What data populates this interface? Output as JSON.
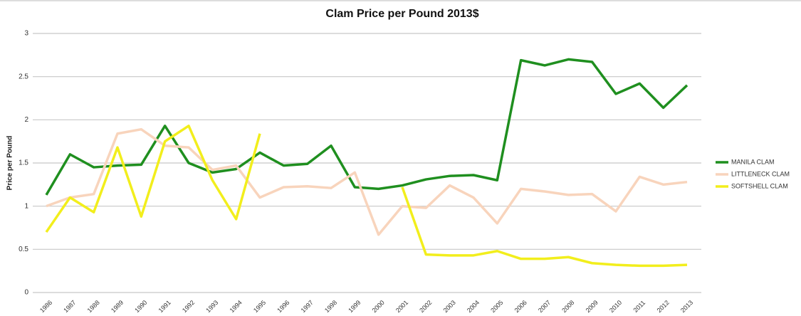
{
  "chart_data": {
    "type": "line",
    "title": "Clam Price per Pound 2013$",
    "y_label": "Price per Pound",
    "categories": [
      "1986",
      "1987",
      "1988",
      "1989",
      "1990",
      "1991",
      "1992",
      "1993",
      "1994",
      "1995",
      "1996",
      "1997",
      "1998",
      "1999",
      "2000",
      "2001",
      "2002",
      "2003",
      "2004",
      "2005",
      "2006",
      "2007",
      "2008",
      "2009",
      "2010",
      "2011",
      "2012",
      "2013"
    ],
    "series": [
      {
        "name": "MANILA CLAM",
        "color": "#1f8f1f",
        "values": [
          1.13,
          1.6,
          1.45,
          1.47,
          1.48,
          1.93,
          1.5,
          1.39,
          1.43,
          1.62,
          1.47,
          1.49,
          1.7,
          1.22,
          1.2,
          1.24,
          1.31,
          1.35,
          1.36,
          1.3,
          2.69,
          2.63,
          2.7,
          2.67,
          2.3,
          2.42,
          2.14,
          2.4
        ]
      },
      {
        "name": "LITTLENECK CLAM",
        "color": "#f8d4bc",
        "values": [
          1.0,
          1.1,
          1.14,
          1.84,
          1.89,
          1.7,
          1.68,
          1.42,
          1.47,
          1.1,
          1.22,
          1.23,
          1.21,
          1.39,
          0.67,
          1.0,
          0.98,
          1.24,
          1.1,
          0.8,
          1.2,
          1.17,
          1.13,
          1.14,
          0.94,
          1.34,
          1.25,
          1.28
        ]
      },
      {
        "name": "SOFTSHELL CLAM",
        "color": "#f2ee1c",
        "values": [
          0.7,
          1.1,
          0.93,
          1.68,
          0.88,
          1.75,
          1.93,
          1.3,
          0.85,
          1.84,
          null,
          null,
          null,
          null,
          null,
          1.22,
          0.44,
          0.43,
          0.43,
          0.48,
          0.39,
          0.39,
          0.41,
          0.34,
          0.32,
          0.31,
          0.31,
          0.32
        ]
      }
    ],
    "ylim": [
      0,
      3
    ],
    "yticks": [
      0,
      0.5,
      1,
      1.5,
      2,
      2.5,
      3
    ],
    "grid": true,
    "legend": "right"
  }
}
